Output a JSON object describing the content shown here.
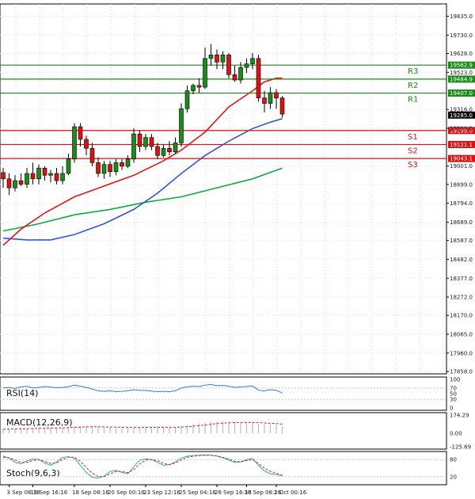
{
  "chart_data": [
    {
      "type": "candlestick",
      "panel": "main",
      "price_axis_ticks": [
        "19835.0",
        "19730.0",
        "19628.0",
        "19523.0",
        "19316.0",
        "19211.0",
        "19001.0",
        "18899.0",
        "18794.0",
        "18689.0",
        "18587.0",
        "18482.0",
        "18377.0",
        "18272.0",
        "18170.0",
        "18065.0",
        "17960.0",
        "17858.0"
      ],
      "ylim": [
        17858,
        19890
      ],
      "levels": [
        {
          "name": "R3",
          "value": 19562.9,
          "label": "19562.9",
          "color": "#1a8c1a"
        },
        {
          "name": "R2",
          "value": 19484.9,
          "label": "19484.9",
          "color": "#1a8c1a"
        },
        {
          "name": "R1",
          "value": 19407.0,
          "label": "19407.0",
          "color": "#1a8c1a"
        },
        {
          "name": "S1",
          "value": 19199.0,
          "label": "19199.0",
          "color": "#dd1111"
        },
        {
          "name": "S2",
          "value": 19121.1,
          "label": "19121.1",
          "color": "#dd1111"
        },
        {
          "name": "S3",
          "value": 19043.1,
          "label": "19043.1",
          "color": "#dd1111"
        }
      ],
      "current_price": {
        "value": 19285.0,
        "label": "19285.0"
      },
      "candles": [
        {
          "o": 18965,
          "h": 18990,
          "l": 18880,
          "c": 18930
        },
        {
          "o": 18930,
          "h": 18960,
          "l": 18840,
          "c": 18880
        },
        {
          "o": 18880,
          "h": 18950,
          "l": 18860,
          "c": 18920
        },
        {
          "o": 18920,
          "h": 18960,
          "l": 18890,
          "c": 18900
        },
        {
          "o": 18900,
          "h": 18990,
          "l": 18880,
          "c": 18960
        },
        {
          "o": 18960,
          "h": 19020,
          "l": 18900,
          "c": 18930
        },
        {
          "o": 18930,
          "h": 19010,
          "l": 18900,
          "c": 18990
        },
        {
          "o": 18990,
          "h": 19000,
          "l": 18920,
          "c": 18950
        },
        {
          "o": 18950,
          "h": 18980,
          "l": 18910,
          "c": 18960
        },
        {
          "o": 18960,
          "h": 18990,
          "l": 18900,
          "c": 18920
        },
        {
          "o": 18920,
          "h": 19000,
          "l": 18900,
          "c": 18960
        },
        {
          "o": 18960,
          "h": 19070,
          "l": 18950,
          "c": 19040
        },
        {
          "o": 19040,
          "h": 19240,
          "l": 19020,
          "c": 19220
        },
        {
          "o": 19220,
          "h": 19240,
          "l": 19110,
          "c": 19150
        },
        {
          "o": 19150,
          "h": 19170,
          "l": 19060,
          "c": 19100
        },
        {
          "o": 19100,
          "h": 19130,
          "l": 19000,
          "c": 19020
        },
        {
          "o": 19020,
          "h": 19050,
          "l": 18940,
          "c": 18960
        },
        {
          "o": 18960,
          "h": 19030,
          "l": 18930,
          "c": 19010
        },
        {
          "o": 19010,
          "h": 19030,
          "l": 18940,
          "c": 18970
        },
        {
          "o": 18970,
          "h": 19040,
          "l": 18950,
          "c": 19020
        },
        {
          "o": 19020,
          "h": 19040,
          "l": 18980,
          "c": 19000
        },
        {
          "o": 19000,
          "h": 19060,
          "l": 18990,
          "c": 19040
        },
        {
          "o": 19040,
          "h": 19210,
          "l": 19020,
          "c": 19180
        },
        {
          "o": 19180,
          "h": 19200,
          "l": 19080,
          "c": 19110
        },
        {
          "o": 19110,
          "h": 19180,
          "l": 19090,
          "c": 19160
        },
        {
          "o": 19160,
          "h": 19180,
          "l": 19090,
          "c": 19110
        },
        {
          "o": 19110,
          "h": 19130,
          "l": 19040,
          "c": 19060
        },
        {
          "o": 19060,
          "h": 19120,
          "l": 19050,
          "c": 19100
        },
        {
          "o": 19100,
          "h": 19140,
          "l": 19060,
          "c": 19080
        },
        {
          "o": 19080,
          "h": 19160,
          "l": 19070,
          "c": 19130
        },
        {
          "o": 19130,
          "h": 19350,
          "l": 19110,
          "c": 19320
        },
        {
          "o": 19320,
          "h": 19450,
          "l": 19300,
          "c": 19420
        },
        {
          "o": 19420,
          "h": 19460,
          "l": 19400,
          "c": 19450
        },
        {
          "o": 19450,
          "h": 19490,
          "l": 19410,
          "c": 19440
        },
        {
          "o": 19440,
          "h": 19660,
          "l": 19430,
          "c": 19600
        },
        {
          "o": 19600,
          "h": 19680,
          "l": 19560,
          "c": 19620
        },
        {
          "o": 19620,
          "h": 19650,
          "l": 19540,
          "c": 19580
        },
        {
          "o": 19580,
          "h": 19640,
          "l": 19540,
          "c": 19620
        },
        {
          "o": 19620,
          "h": 19630,
          "l": 19490,
          "c": 19510
        },
        {
          "o": 19510,
          "h": 19560,
          "l": 19470,
          "c": 19480
        },
        {
          "o": 19480,
          "h": 19580,
          "l": 19460,
          "c": 19550
        },
        {
          "o": 19550,
          "h": 19600,
          "l": 19520,
          "c": 19570
        },
        {
          "o": 19570,
          "h": 19630,
          "l": 19540,
          "c": 19600
        },
        {
          "o": 19600,
          "h": 19620,
          "l": 19360,
          "c": 19380
        },
        {
          "o": 19380,
          "h": 19420,
          "l": 19300,
          "c": 19350
        },
        {
          "o": 19350,
          "h": 19440,
          "l": 19320,
          "c": 19410
        },
        {
          "o": 19410,
          "h": 19430,
          "l": 19320,
          "c": 19380
        },
        {
          "o": 19380,
          "h": 19390,
          "l": 19270,
          "c": 19290
        }
      ],
      "ma_fast_color": "#ee1111",
      "ma_mid_color": "#3355dd",
      "ma_slow_color": "#11aa44",
      "ma_fast": [
        [
          0,
          18560
        ],
        [
          3,
          18650
        ],
        [
          7,
          18740
        ],
        [
          12,
          18830
        ],
        [
          17,
          18890
        ],
        [
          22,
          18950
        ],
        [
          27,
          19030
        ],
        [
          30,
          19090
        ],
        [
          34,
          19190
        ],
        [
          38,
          19330
        ],
        [
          42,
          19420
        ],
        [
          44,
          19470
        ],
        [
          46,
          19490
        ],
        [
          47,
          19490
        ]
      ],
      "ma_mid": [
        [
          0,
          18600
        ],
        [
          4,
          18590
        ],
        [
          8,
          18590
        ],
        [
          12,
          18620
        ],
        [
          17,
          18680
        ],
        [
          22,
          18760
        ],
        [
          26,
          18850
        ],
        [
          30,
          18960
        ],
        [
          34,
          19060
        ],
        [
          38,
          19140
        ],
        [
          42,
          19210
        ],
        [
          45,
          19245
        ],
        [
          47,
          19265
        ]
      ],
      "ma_slow": [
        [
          0,
          18640
        ],
        [
          6,
          18680
        ],
        [
          12,
          18730
        ],
        [
          18,
          18760
        ],
        [
          24,
          18800
        ],
        [
          30,
          18830
        ],
        [
          36,
          18880
        ],
        [
          42,
          18930
        ],
        [
          47,
          18990
        ]
      ]
    },
    {
      "type": "line",
      "panel": "rsi",
      "title": "RSI(14)",
      "ticks": [
        "100",
        "70",
        "50",
        "30",
        "0"
      ],
      "ylim": [
        0,
        100
      ],
      "color": "#3377dd",
      "values": [
        70,
        72,
        68,
        74,
        76,
        70,
        72,
        75,
        73,
        71,
        72,
        74,
        80,
        76,
        72,
        66,
        60,
        58,
        60,
        57,
        58,
        60,
        64,
        62,
        61,
        59,
        57,
        58,
        57,
        60,
        70,
        74,
        76,
        75,
        80,
        82,
        78,
        79,
        76,
        72,
        74,
        75,
        77,
        62,
        60,
        64,
        62,
        52
      ]
    },
    {
      "type": "bar",
      "panel": "macd",
      "title": "MACD(12,26,9)",
      "ticks": [
        "174.29",
        "0.00",
        "-125.69"
      ],
      "ylim": [
        -125.69,
        174.29
      ],
      "hist_color": "#bbbbbb",
      "signal_color": "#dd2222",
      "histogram": [
        40,
        42,
        44,
        46,
        48,
        50,
        52,
        53,
        54,
        55,
        56,
        58,
        64,
        68,
        70,
        68,
        64,
        60,
        58,
        56,
        54,
        53,
        56,
        58,
        60,
        60,
        58,
        57,
        56,
        58,
        70,
        80,
        88,
        94,
        102,
        110,
        112,
        112,
        110,
        106,
        104,
        102,
        100,
        92,
        86,
        84,
        80,
        70
      ],
      "signal": [
        40,
        41,
        42,
        44,
        45,
        47,
        49,
        50,
        51,
        52,
        53,
        55,
        57,
        60,
        62,
        63,
        63,
        62,
        61,
        60,
        58,
        57,
        57,
        57,
        58,
        58,
        58,
        58,
        57,
        57,
        60,
        64,
        69,
        74,
        80,
        87,
        93,
        98,
        101,
        103,
        104,
        104,
        104,
        102,
        99,
        96,
        93,
        88
      ]
    },
    {
      "type": "line",
      "panel": "stoch",
      "title": "Stoch(9,6,3)",
      "ticks": [
        "80",
        "20"
      ],
      "ylim": [
        0,
        100
      ],
      "main_color": "#20b2aa",
      "signal_color": "#dd2222",
      "main": [
        92,
        85,
        70,
        65,
        75,
        82,
        80,
        68,
        60,
        72,
        88,
        90,
        85,
        60,
        35,
        18,
        15,
        22,
        38,
        42,
        35,
        30,
        55,
        78,
        82,
        80,
        70,
        60,
        62,
        72,
        85,
        92,
        94,
        95,
        96,
        95,
        92,
        86,
        78,
        70,
        72,
        80,
        84,
        60,
        40,
        30,
        28,
        22
      ],
      "signal": [
        88,
        86,
        78,
        70,
        70,
        76,
        80,
        74,
        66,
        68,
        80,
        88,
        88,
        74,
        52,
        32,
        20,
        20,
        30,
        38,
        38,
        34,
        45,
        65,
        78,
        80,
        76,
        66,
        62,
        68,
        78,
        88,
        92,
        94,
        95,
        95,
        93,
        88,
        82,
        74,
        72,
        76,
        80,
        66,
        50,
        38,
        32,
        26
      ]
    }
  ],
  "x_axis": {
    "labels": [
      {
        "text": "3 Sep 08:16",
        "index": 1
      },
      {
        "text": "16 Sep 16:16",
        "index": 5
      },
      {
        "text": "18 Sep 08:16",
        "index": 12
      },
      {
        "text": "20 Sep 00:16",
        "index": 18
      },
      {
        "text": "23 Sep 12:16",
        "index": 24
      },
      {
        "text": "25 Sep 04:16",
        "index": 30
      },
      {
        "text": "26 Sep 16:16",
        "index": 36
      },
      {
        "text": "30 Sep 08:16",
        "index": 41
      },
      {
        "text": "2 Oct 00:16",
        "index": 46
      }
    ]
  }
}
